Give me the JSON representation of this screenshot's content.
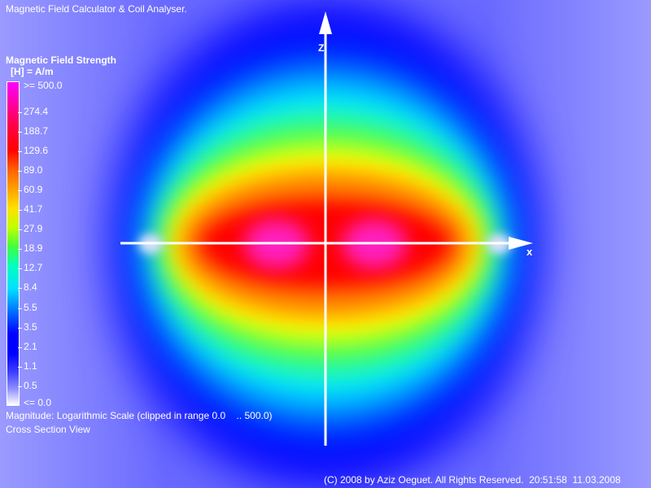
{
  "title": "Magnetic Field Calculator & Coil Analyser.",
  "legend": {
    "title": "Magnetic Field Strength",
    "unit": "[H] = A/m",
    "labels": [
      ">= 500.0",
      "274.4",
      "188.7",
      "129.6",
      "89.0",
      "60.9",
      "41.7",
      "27.9",
      "18.9",
      "12.7",
      "8.4",
      "5.5",
      "3.5",
      "2.1",
      "1.1",
      "0.5",
      "<= 0.0"
    ]
  },
  "scale_info": "Magnitude: Logarithmic Scale (clipped in range 0.0    .. 500.0)",
  "view_mode": "Cross Section View",
  "axes": {
    "z": "z",
    "x": "x"
  },
  "copyright": "(C) 2008 by Aziz Oeguet. All Rights Reserved.  20:51:58  11.03.2008"
}
